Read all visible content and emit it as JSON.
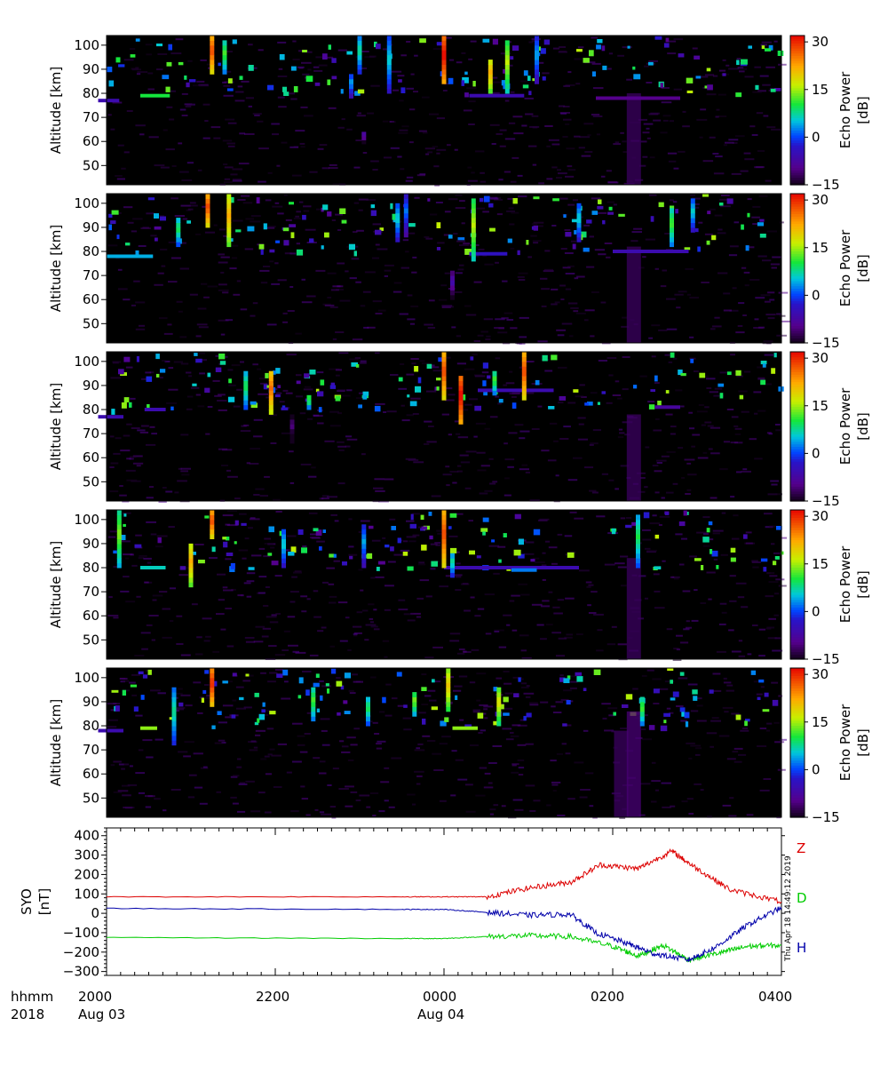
{
  "figure": {
    "x_axis": {
      "row_label_time": "hhmm",
      "row_label_year": "2018",
      "tick_times": [
        "2000",
        "2200",
        "0000",
        "0200",
        "0400"
      ],
      "tick_dates": [
        "Aug 03",
        "",
        "Aug 04",
        "",
        ""
      ]
    },
    "stamp": "Thu Apr 18 14:49:12 2019"
  },
  "chart_data": [
    {
      "type": "heatmap",
      "panel": 1,
      "ylabel": "Altitude [km]",
      "ylim": [
        42,
        104
      ],
      "yticks": [
        50,
        60,
        70,
        80,
        90,
        100
      ],
      "colorbar": {
        "label_line1": "Echo Power",
        "label_line2": "[dB]",
        "range": [
          -15,
          32
        ],
        "ticks": [
          -15,
          0,
          15,
          30
        ]
      },
      "layers": [
        {
          "alt": 77,
          "t0": -0.1,
          "t1": 0.15,
          "db": -6
        },
        {
          "alt": 79,
          "t0": 0.4,
          "t1": 0.75,
          "db": 10
        },
        {
          "alt": 79,
          "t0": 4.3,
          "t1": 4.95,
          "db": -6
        },
        {
          "alt": 78,
          "t0": 5.8,
          "t1": 6.8,
          "db": -10
        }
      ],
      "columns": [
        {
          "t": 1.25,
          "a0": 88,
          "a1": 104,
          "db": 28
        },
        {
          "t": 1.4,
          "a0": 88,
          "a1": 102,
          "db": 12
        },
        {
          "t": 2.9,
          "a0": 78,
          "a1": 88,
          "db": 4
        },
        {
          "t": 3.0,
          "a0": 88,
          "a1": 104,
          "db": 8
        },
        {
          "t": 3.35,
          "a0": 80,
          "a1": 104,
          "db": 6
        },
        {
          "t": 4.0,
          "a0": 84,
          "a1": 104,
          "db": 32
        },
        {
          "t": 4.55,
          "a0": 80,
          "a1": 94,
          "db": 22
        },
        {
          "t": 4.75,
          "a0": 80,
          "a1": 102,
          "db": 16
        },
        {
          "t": 5.1,
          "a0": 84,
          "a1": 104,
          "db": 4
        },
        {
          "t": 3.05,
          "a0": 59,
          "a1": 64,
          "db": -6
        }
      ],
      "patches": [
        {
          "t": 6.25,
          "a0": 42,
          "a1": 80,
          "db": -12
        }
      ]
    },
    {
      "type": "heatmap",
      "panel": 2,
      "ylabel": "Altitude [km]",
      "ylim": [
        42,
        104
      ],
      "yticks": [
        50,
        60,
        70,
        80,
        90,
        100
      ],
      "colorbar": {
        "label_line1": "Echo Power",
        "label_line2": "[dB]",
        "range": [
          -15,
          32
        ],
        "ticks": [
          -15,
          0,
          15,
          30
        ]
      },
      "layers": [
        {
          "alt": 78,
          "t0": 0.0,
          "t1": 0.55,
          "db": 4
        },
        {
          "alt": 79,
          "t0": 4.3,
          "t1": 4.75,
          "db": -4
        },
        {
          "alt": 80,
          "t0": 6.0,
          "t1": 6.9,
          "db": -6
        }
      ],
      "columns": [
        {
          "t": 0.85,
          "a0": 82,
          "a1": 94,
          "db": 10
        },
        {
          "t": 1.2,
          "a0": 90,
          "a1": 104,
          "db": 28
        },
        {
          "t": 1.45,
          "a0": 82,
          "a1": 104,
          "db": 22
        },
        {
          "t": 3.45,
          "a0": 84,
          "a1": 100,
          "db": 6
        },
        {
          "t": 3.55,
          "a0": 86,
          "a1": 104,
          "db": 2
        },
        {
          "t": 4.35,
          "a0": 76,
          "a1": 102,
          "db": 16
        },
        {
          "t": 4.1,
          "a0": 60,
          "a1": 72,
          "db": -6
        },
        {
          "t": 5.6,
          "a0": 84,
          "a1": 100,
          "db": 6
        },
        {
          "t": 6.7,
          "a0": 82,
          "a1": 98,
          "db": 12
        },
        {
          "t": 6.95,
          "a0": 88,
          "a1": 102,
          "db": 6
        }
      ],
      "patches": [
        {
          "t": 6.25,
          "a0": 42,
          "a1": 82,
          "db": -12
        }
      ]
    },
    {
      "type": "heatmap",
      "panel": 3,
      "ylabel": "Altitude [km]",
      "ylim": [
        42,
        104
      ],
      "yticks": [
        50,
        60,
        70,
        80,
        90,
        100
      ],
      "colorbar": {
        "label_line1": "Echo Power",
        "label_line2": "[dB]",
        "range": [
          -15,
          32
        ],
        "ticks": [
          -15,
          0,
          15,
          30
        ]
      },
      "layers": [
        {
          "alt": 77,
          "t0": -0.1,
          "t1": 0.2,
          "db": -6
        },
        {
          "alt": 80,
          "t0": 0.45,
          "t1": 0.7,
          "db": -6
        },
        {
          "alt": 88,
          "t0": 4.4,
          "t1": 5.3,
          "db": -6
        },
        {
          "alt": 81,
          "t0": 6.5,
          "t1": 6.8,
          "db": -8
        }
      ],
      "columns": [
        {
          "t": 1.65,
          "a0": 80,
          "a1": 96,
          "db": 10
        },
        {
          "t": 1.95,
          "a0": 78,
          "a1": 96,
          "db": 26
        },
        {
          "t": 2.4,
          "a0": 80,
          "a1": 86,
          "db": 12
        },
        {
          "t": 4.0,
          "a0": 84,
          "a1": 104,
          "db": 28
        },
        {
          "t": 4.2,
          "a0": 74,
          "a1": 94,
          "db": 32
        },
        {
          "t": 4.6,
          "a0": 86,
          "a1": 96,
          "db": 12
        },
        {
          "t": 4.95,
          "a0": 84,
          "a1": 104,
          "db": 28
        },
        {
          "t": 2.2,
          "a0": 66,
          "a1": 78,
          "db": -10
        }
      ],
      "patches": [
        {
          "t": 6.25,
          "a0": 42,
          "a1": 78,
          "db": -12
        }
      ]
    },
    {
      "type": "heatmap",
      "panel": 4,
      "ylabel": "Altitude [km]",
      "ylim": [
        42,
        104
      ],
      "yticks": [
        50,
        60,
        70,
        80,
        90,
        100
      ],
      "colorbar": {
        "label_line1": "Echo Power",
        "label_line2": "[dB]",
        "range": [
          -15,
          32
        ],
        "ticks": [
          -15,
          0,
          15,
          30
        ]
      },
      "layers": [
        {
          "alt": 80,
          "t0": 0.4,
          "t1": 0.7,
          "db": 6
        },
        {
          "alt": 80,
          "t0": 4.0,
          "t1": 5.6,
          "db": -6
        },
        {
          "alt": 79,
          "t0": 4.8,
          "t1": 5.1,
          "db": 2
        }
      ],
      "columns": [
        {
          "t": 0.15,
          "a0": 80,
          "a1": 104,
          "db": 14
        },
        {
          "t": 1.0,
          "a0": 72,
          "a1": 90,
          "db": 22
        },
        {
          "t": 1.25,
          "a0": 92,
          "a1": 104,
          "db": 28
        },
        {
          "t": 3.05,
          "a0": 80,
          "a1": 98,
          "db": 4
        },
        {
          "t": 4.0,
          "a0": 80,
          "a1": 104,
          "db": 28
        },
        {
          "t": 4.1,
          "a0": 76,
          "a1": 86,
          "db": 8
        },
        {
          "t": 6.3,
          "a0": 80,
          "a1": 102,
          "db": 10
        },
        {
          "t": 2.1,
          "a0": 80,
          "a1": 96,
          "db": 6
        }
      ],
      "patches": [
        {
          "t": 6.25,
          "a0": 42,
          "a1": 84,
          "db": -12
        }
      ]
    },
    {
      "type": "heatmap",
      "panel": 5,
      "ylabel": "Altitude [km]",
      "ylim": [
        42,
        104
      ],
      "yticks": [
        50,
        60,
        70,
        80,
        90,
        100
      ],
      "colorbar": {
        "label_line1": "Echo Power",
        "label_line2": "[dB]",
        "range": [
          -15,
          32
        ],
        "ticks": [
          -15,
          0,
          15,
          30
        ]
      },
      "layers": [
        {
          "alt": 79,
          "t0": 0.4,
          "t1": 0.6,
          "db": 14
        },
        {
          "alt": 79,
          "t0": 4.1,
          "t1": 4.4,
          "db": 14
        },
        {
          "alt": 78,
          "t0": -0.1,
          "t1": 0.2,
          "db": -6
        }
      ],
      "columns": [
        {
          "t": 0.8,
          "a0": 72,
          "a1": 96,
          "db": 8
        },
        {
          "t": 1.25,
          "a0": 88,
          "a1": 104,
          "db": 30
        },
        {
          "t": 3.1,
          "a0": 80,
          "a1": 92,
          "db": 10
        },
        {
          "t": 4.05,
          "a0": 86,
          "a1": 104,
          "db": 20
        },
        {
          "t": 4.65,
          "a0": 80,
          "a1": 96,
          "db": 18
        },
        {
          "t": 6.35,
          "a0": 80,
          "a1": 92,
          "db": 12
        },
        {
          "t": 2.45,
          "a0": 82,
          "a1": 96,
          "db": 12
        },
        {
          "t": 3.65,
          "a0": 84,
          "a1": 94,
          "db": 14
        }
      ],
      "patches": [
        {
          "t": 6.1,
          "a0": 42,
          "a1": 78,
          "db": -12
        },
        {
          "t": 6.25,
          "a0": 42,
          "a1": 86,
          "db": -11
        }
      ]
    },
    {
      "type": "line",
      "panel": 6,
      "ylabel_line1": "SYO",
      "ylabel_line2": "[nT]",
      "ylim": [
        -320,
        440
      ],
      "yticks": [
        -300,
        -200,
        -100,
        0,
        100,
        200,
        300,
        400
      ],
      "series": [
        {
          "name": "Z",
          "color": "#dd0000",
          "x": [
            0,
            3.5,
            4.0,
            4.5,
            5.0,
            5.5,
            5.85,
            6.3,
            6.7,
            7.0,
            7.4,
            8.0
          ],
          "values": [
            85,
            85,
            85,
            85,
            130,
            160,
            250,
            230,
            320,
            230,
            120,
            60
          ]
        },
        {
          "name": "D",
          "color": "#00cc00",
          "x": [
            0,
            3.5,
            4.0,
            4.5,
            5.0,
            5.5,
            6.0,
            6.3,
            6.6,
            6.9,
            7.3,
            7.6,
            8.0
          ],
          "values": [
            -125,
            -130,
            -130,
            -120,
            -115,
            -120,
            -170,
            -220,
            -165,
            -240,
            -200,
            -170,
            -165
          ]
        },
        {
          "name": "H",
          "color": "#0000aa",
          "x": [
            0,
            3.5,
            4.0,
            4.5,
            5.0,
            5.5,
            5.8,
            6.2,
            6.5,
            6.9,
            7.2,
            7.6,
            8.0
          ],
          "values": [
            25,
            20,
            20,
            5,
            -10,
            -5,
            -100,
            -160,
            -210,
            -240,
            -180,
            -60,
            30
          ]
        }
      ]
    }
  ]
}
